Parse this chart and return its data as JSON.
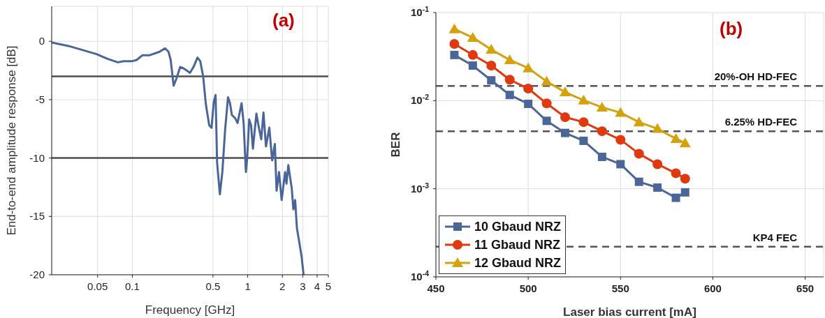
{
  "chart_data": [
    {
      "type": "line",
      "xlabel": "Frequency [GHz]",
      "ylabel": "End-to-end amplitude response [dB]",
      "annotations": [
        "(a)"
      ],
      "log": "x",
      "grid": true,
      "legend": false,
      "marker": "none",
      "line_style": "solid",
      "xlim": [
        0.02,
        5
      ],
      "xticks": [
        0.05,
        0.1,
        0.5,
        1,
        2,
        3,
        4,
        5
      ],
      "ylim": [
        -20,
        3
      ],
      "yticks": [
        -20,
        -15,
        -10,
        -5,
        0
      ],
      "ref_lines": [
        {
          "axis": "y",
          "value": -3,
          "color": "#4d4d4d",
          "line_style": "solid"
        },
        {
          "axis": "y",
          "value": -10,
          "color": "#4d4d4d",
          "line_style": "solid"
        }
      ],
      "series": [
        {
          "color": "#4a6699",
          "x": [
            0.02,
            0.028,
            0.049,
            0.061,
            0.075,
            0.084,
            0.1,
            0.109,
            0.122,
            0.14,
            0.172,
            0.192,
            0.206,
            0.215,
            0.228,
            0.241,
            0.26,
            0.276,
            0.296,
            0.316,
            0.339,
            0.367,
            0.388,
            0.411,
            0.434,
            0.464,
            0.486,
            0.508,
            0.527,
            0.543,
            0.574,
            0.603,
            0.637,
            0.675,
            0.703,
            0.729,
            0.78,
            0.817,
            0.885,
            0.922,
            0.965,
            0.99,
            1.03,
            1.07,
            1.11,
            1.19,
            1.24,
            1.31,
            1.37,
            1.44,
            1.54,
            1.63,
            1.72,
            1.78,
            1.87,
            1.97,
            2.11,
            2.17,
            2.25,
            2.41,
            2.49,
            2.58,
            2.67,
            2.8,
            2.93,
            3.05
          ],
          "values": [
            -0.1,
            -0.4,
            -1.1,
            -1.5,
            -1.8,
            -1.7,
            -1.7,
            -1.6,
            -1.2,
            -1.2,
            -0.9,
            -0.6,
            -0.9,
            -1.6,
            -3.8,
            -3.2,
            -2.2,
            -2.3,
            -2.5,
            -2.7,
            -2.2,
            -1.4,
            -1.7,
            -3,
            -5.4,
            -7.2,
            -7.4,
            -5.2,
            -4.6,
            -10.4,
            -13.1,
            -11.2,
            -7.6,
            -4.8,
            -5.3,
            -6.3,
            -6.6,
            -7,
            -5.3,
            -7,
            -11.2,
            -10,
            -6.7,
            -7.2,
            -9.2,
            -6.2,
            -7.2,
            -8.4,
            -6.1,
            -9,
            -7.4,
            -10.2,
            -8.8,
            -12.8,
            -11.2,
            -13.6,
            -11.2,
            -12.2,
            -10.6,
            -12.6,
            -14.4,
            -13.6,
            -16,
            -17.2,
            -18.4,
            -20
          ]
        }
      ]
    },
    {
      "type": "line",
      "xlabel": "Laser bias current [mA]",
      "ylabel": "BER",
      "annotations": [
        "(b)"
      ],
      "log": "y",
      "grid": true,
      "legend": "bottom left",
      "line_style": "solid",
      "xlim": [
        450,
        660
      ],
      "xticks": [
        450,
        500,
        550,
        600,
        650
      ],
      "ylim": [
        0.0001,
        0.1
      ],
      "yticks": [
        {
          "value": 0.0001,
          "label": "10$^{-4}$"
        },
        {
          "value": 0.001,
          "label": "10$^{-3}$"
        },
        {
          "value": 0.01,
          "label": "10$^{-2}$"
        },
        {
          "value": 0.1,
          "label": "10$^{-1}$"
        }
      ],
      "ref_lines": [
        {
          "axis": "y",
          "value": 0.0147,
          "label": "20%-OH HD-FEC",
          "color": "#555555",
          "line_style": "dashed"
        },
        {
          "axis": "y",
          "value": 0.0045,
          "label": "6.25% HD-FEC",
          "color": "#555555",
          "line_style": "dashed"
        },
        {
          "axis": "y",
          "value": 0.00022,
          "label": "KP4 FEC",
          "color": "#555555",
          "line_style": "dashed"
        }
      ],
      "x": [
        460,
        470,
        480,
        490,
        500,
        510,
        520,
        530,
        540,
        550,
        560,
        570,
        580,
        585
      ],
      "series": [
        {
          "name": "10 Gbaud NRZ",
          "color": "#4a6699",
          "marker": "square",
          "values": [
            0.033,
            0.025,
            0.017,
            0.0116,
            0.0092,
            0.0059,
            0.0043,
            0.0035,
            0.0023,
            0.0019,
            0.0012,
            0.00103,
            0.00079,
            0.00091
          ]
        },
        {
          "name": "11 Gbaud NRZ",
          "color": "#e0380f",
          "marker": "circle",
          "values": [
            0.044,
            0.033,
            0.025,
            0.0173,
            0.0137,
            0.0093,
            0.0065,
            0.0057,
            0.0045,
            0.0036,
            0.0025,
            0.0019,
            0.0015,
            0.0013
          ]
        },
        {
          "name": "12 Gbaud NRZ",
          "color": "#d4a20c",
          "marker": "triangle",
          "values": [
            0.065,
            0.052,
            0.038,
            0.029,
            0.0234,
            0.0165,
            0.0125,
            0.0101,
            0.0084,
            0.0073,
            0.0057,
            0.0048,
            0.0037,
            0.0033
          ]
        }
      ]
    }
  ]
}
